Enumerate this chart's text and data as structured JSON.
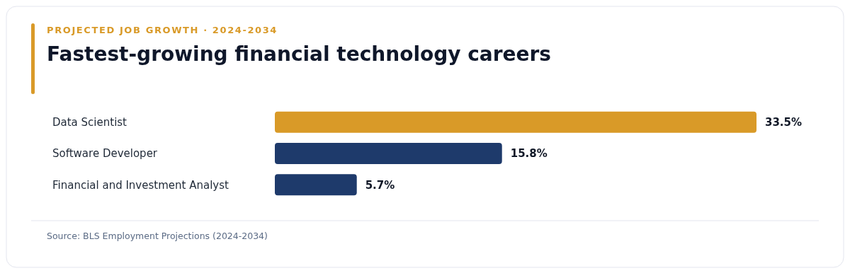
{
  "chart_data": {
    "type": "bar",
    "orientation": "horizontal",
    "subtitle": "PROJECTED JOB GROWTH · 2024-2034",
    "title": "Fastest-growing financial technology careers",
    "categories": [
      "Data Scientist",
      "Software Developer",
      "Financial and Investment Analyst"
    ],
    "values": [
      33.5,
      15.8,
      5.7
    ],
    "colors": [
      "#d99a28",
      "#1e3a6b",
      "#1e3a6b"
    ],
    "value_labels": [
      "33.5%",
      "15.8%",
      "5.7%"
    ],
    "annotations": [
      "Source: BLS Employment Projections (2024-2034)"
    ]
  }
}
